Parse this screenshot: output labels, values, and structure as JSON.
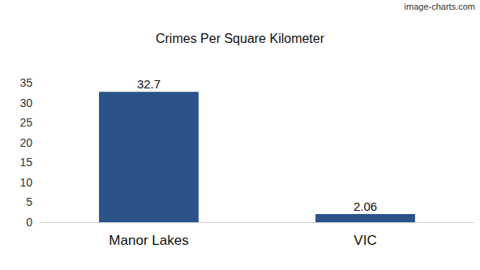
{
  "chart_data": {
    "type": "bar",
    "title": "Crimes Per Square Kilometer",
    "categories": [
      "Manor Lakes",
      "VIC"
    ],
    "values": [
      32.7,
      2.06
    ],
    "color": "#2b5289",
    "ylim": [
      0,
      35
    ],
    "yticks": [
      0,
      5,
      10,
      15,
      20,
      25,
      30,
      35
    ],
    "grid": false,
    "data_labels": true,
    "annotations": [
      "image-charts.com"
    ]
  }
}
